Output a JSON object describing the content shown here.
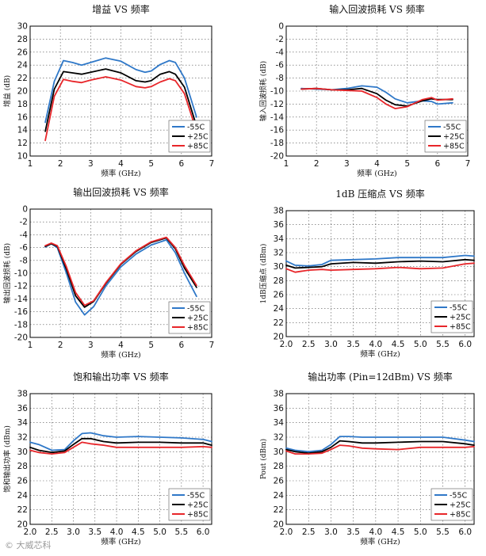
{
  "chart_data": [
    {
      "type": "line",
      "title": "增益 VS 频率",
      "xlabel": "频率 (GHz)",
      "ylabel": "增益 (dB)",
      "xlim": [
        1,
        7
      ],
      "ylim": [
        10,
        30
      ],
      "xticks": [
        1,
        2,
        3,
        4,
        5,
        6,
        7
      ],
      "yticks": [
        10,
        12,
        14,
        16,
        18,
        20,
        22,
        24,
        26,
        28,
        30
      ],
      "grid": true,
      "legend": "bottom-right",
      "series": [
        {
          "name": "-55C",
          "color": "#2f78c8",
          "x": [
            1.5,
            1.8,
            2.1,
            2.4,
            2.7,
            3.0,
            3.5,
            4.0,
            4.5,
            4.8,
            5.0,
            5.3,
            5.6,
            5.8,
            6.1,
            6.5
          ],
          "y": [
            15.2,
            21.5,
            24.7,
            24.4,
            24.0,
            24.4,
            25.1,
            24.6,
            23.3,
            22.9,
            23.1,
            24.1,
            24.7,
            24.4,
            22.0,
            16.0
          ]
        },
        {
          "name": "+25C",
          "color": "#000000",
          "x": [
            1.5,
            1.8,
            2.1,
            2.4,
            2.7,
            3.0,
            3.5,
            4.0,
            4.5,
            4.8,
            5.0,
            5.3,
            5.6,
            5.8,
            6.1,
            6.5
          ],
          "y": [
            13.8,
            20.3,
            23.0,
            22.8,
            22.6,
            22.9,
            23.4,
            22.8,
            21.6,
            21.4,
            21.6,
            22.6,
            23.0,
            22.6,
            20.6,
            14.6
          ]
        },
        {
          "name": "+85C",
          "color": "#e8262a",
          "x": [
            1.5,
            1.8,
            2.1,
            2.4,
            2.7,
            3.0,
            3.5,
            4.0,
            4.5,
            4.8,
            5.0,
            5.3,
            5.6,
            5.8,
            6.1,
            6.5
          ],
          "y": [
            12.4,
            19.2,
            21.8,
            21.5,
            21.3,
            21.7,
            22.2,
            21.7,
            20.7,
            20.5,
            20.7,
            21.4,
            21.9,
            21.6,
            19.6,
            13.8
          ]
        }
      ]
    },
    {
      "type": "line",
      "title": "输入回波损耗 VS 频率",
      "xlabel": "频率 (GHz)",
      "ylabel": "输入回波损耗 (dB)",
      "xlim": [
        1,
        7
      ],
      "ylim": [
        -20,
        0
      ],
      "xticks": [
        1,
        2,
        3,
        4,
        5,
        6,
        7
      ],
      "yticks": [
        0,
        -2,
        -4,
        -6,
        -8,
        -10,
        -12,
        -14,
        -16,
        -18,
        -20
      ],
      "grid": true,
      "legend": "bottom-right",
      "series": [
        {
          "name": "-55C",
          "color": "#2f78c8",
          "x": [
            1.5,
            2.0,
            2.5,
            3.0,
            3.5,
            4.0,
            4.3,
            4.6,
            5.0,
            5.5,
            5.8,
            6.0,
            6.5
          ],
          "y": [
            -9.6,
            -9.7,
            -9.8,
            -9.6,
            -9.2,
            -9.4,
            -10.2,
            -11.2,
            -11.8,
            -11.5,
            -11.6,
            -12.0,
            -11.8
          ]
        },
        {
          "name": "+25C",
          "color": "#000000",
          "x": [
            1.5,
            2.0,
            2.5,
            3.0,
            3.5,
            4.0,
            4.3,
            4.6,
            5.0,
            5.5,
            5.8,
            6.0,
            6.5
          ],
          "y": [
            -9.7,
            -9.6,
            -9.8,
            -9.8,
            -9.6,
            -10.4,
            -11.4,
            -12.1,
            -12.3,
            -11.5,
            -11.2,
            -11.3,
            -11.3
          ]
        },
        {
          "name": "+85C",
          "color": "#e8262a",
          "x": [
            1.5,
            2.0,
            2.5,
            3.0,
            3.5,
            4.0,
            4.3,
            4.6,
            5.0,
            5.5,
            5.8,
            6.0,
            6.5
          ],
          "y": [
            -9.7,
            -9.6,
            -9.8,
            -9.9,
            -10.0,
            -11.0,
            -12.0,
            -12.7,
            -12.4,
            -11.3,
            -11.0,
            -11.4,
            -11.2
          ]
        }
      ]
    },
    {
      "type": "line",
      "title": "输出回波损耗 VS 频率",
      "xlabel": "频率 (GHz)",
      "ylabel": "输出回波损耗 (dB)",
      "xlim": [
        1,
        7
      ],
      "ylim": [
        -20,
        0
      ],
      "xticks": [
        1,
        2,
        3,
        4,
        5,
        6,
        7
      ],
      "yticks": [
        0,
        -2,
        -4,
        -6,
        -8,
        -10,
        -12,
        -14,
        -16,
        -18,
        -20
      ],
      "grid": true,
      "legend": "bottom-right",
      "series": [
        {
          "name": "-55C",
          "color": "#2f78c8",
          "x": [
            1.5,
            1.7,
            1.9,
            2.2,
            2.5,
            2.8,
            3.1,
            3.5,
            4.0,
            4.5,
            5.0,
            5.5,
            5.8,
            6.1,
            6.5
          ],
          "y": [
            -5.9,
            -5.4,
            -6.0,
            -10.0,
            -14.5,
            -16.5,
            -15.2,
            -12.0,
            -9.0,
            -7.0,
            -5.6,
            -4.8,
            -6.8,
            -10.0,
            -13.6
          ]
        },
        {
          "name": "+25C",
          "color": "#000000",
          "x": [
            1.5,
            1.7,
            1.9,
            2.2,
            2.5,
            2.8,
            3.1,
            3.5,
            4.0,
            4.5,
            5.0,
            5.5,
            5.8,
            6.1,
            6.5
          ],
          "y": [
            -5.8,
            -5.4,
            -5.8,
            -9.4,
            -13.5,
            -15.3,
            -14.4,
            -11.6,
            -8.6,
            -6.6,
            -5.2,
            -4.5,
            -6.2,
            -9.2,
            -12.2
          ]
        },
        {
          "name": "+85C",
          "color": "#e8262a",
          "x": [
            1.5,
            1.7,
            1.9,
            2.2,
            2.5,
            2.8,
            3.1,
            3.5,
            4.0,
            4.5,
            5.0,
            5.5,
            5.8,
            6.1,
            6.5
          ],
          "y": [
            -5.7,
            -5.3,
            -5.7,
            -9.0,
            -13.0,
            -15.0,
            -14.3,
            -11.5,
            -8.5,
            -6.5,
            -5.1,
            -4.4,
            -6.0,
            -8.8,
            -11.9
          ]
        }
      ]
    },
    {
      "type": "line",
      "title": "1dB 压缩点 VS 频率",
      "xlabel": "频率 (GHz)",
      "ylabel": "1dB压缩点 (dBm)",
      "xlim": [
        2.0,
        6.2
      ],
      "ylim": [
        20,
        38
      ],
      "xticks": [
        2.0,
        2.5,
        3.0,
        3.5,
        4.0,
        4.5,
        5.0,
        5.5,
        6.0
      ],
      "yticks": [
        20,
        22,
        24,
        26,
        28,
        30,
        32,
        34,
        36,
        38
      ],
      "grid": true,
      "legend": "bottom-right",
      "series": [
        {
          "name": "-55C",
          "color": "#2f78c8",
          "x": [
            2.0,
            2.2,
            2.5,
            2.8,
            3.0,
            3.5,
            4.0,
            4.5,
            5.0,
            5.5,
            6.0,
            6.2
          ],
          "y": [
            30.8,
            30.2,
            30.1,
            30.3,
            30.9,
            31.0,
            31.1,
            31.3,
            31.3,
            31.3,
            31.6,
            31.5
          ]
        },
        {
          "name": "+25C",
          "color": "#000000",
          "x": [
            2.0,
            2.2,
            2.5,
            2.8,
            3.0,
            3.5,
            4.0,
            4.5,
            5.0,
            5.5,
            6.0,
            6.2
          ],
          "y": [
            30.2,
            29.8,
            29.9,
            30.0,
            30.4,
            30.6,
            30.5,
            30.7,
            30.8,
            30.7,
            31.0,
            30.9
          ]
        },
        {
          "name": "+85C",
          "color": "#e8262a",
          "x": [
            2.0,
            2.2,
            2.5,
            2.8,
            3.0,
            3.5,
            4.0,
            4.5,
            5.0,
            5.5,
            6.0,
            6.2
          ],
          "y": [
            29.7,
            29.2,
            29.5,
            29.6,
            29.5,
            29.6,
            29.7,
            29.9,
            29.7,
            29.8,
            30.4,
            30.5
          ]
        }
      ]
    },
    {
      "type": "line",
      "title": "饱和输出功率 VS 频率",
      "xlabel": "频率 (GHz)",
      "ylabel": "饱和输出功率 (dBm)",
      "xlim": [
        2.0,
        6.2
      ],
      "ylim": [
        20,
        38
      ],
      "xticks": [
        2.0,
        2.5,
        3.0,
        3.5,
        4.0,
        4.5,
        5.0,
        5.5,
        6.0
      ],
      "yticks": [
        20,
        22,
        24,
        26,
        28,
        30,
        32,
        34,
        36,
        38
      ],
      "grid": true,
      "legend": "bottom-right",
      "series": [
        {
          "name": "-55C",
          "color": "#2f78c8",
          "x": [
            2.0,
            2.2,
            2.5,
            2.8,
            3.0,
            3.2,
            3.4,
            3.7,
            4.0,
            4.5,
            5.0,
            5.5,
            6.0,
            6.2
          ],
          "y": [
            31.3,
            31.0,
            30.2,
            30.3,
            31.5,
            32.5,
            32.6,
            32.2,
            32.0,
            32.1,
            32.0,
            31.9,
            31.7,
            31.4
          ]
        },
        {
          "name": "+25C",
          "color": "#000000",
          "x": [
            2.0,
            2.2,
            2.5,
            2.8,
            3.0,
            3.2,
            3.4,
            3.7,
            4.0,
            4.5,
            5.0,
            5.5,
            6.0,
            6.2
          ],
          "y": [
            30.6,
            30.2,
            29.9,
            30.1,
            31.0,
            31.8,
            31.8,
            31.4,
            31.2,
            31.3,
            31.3,
            31.2,
            31.2,
            30.9
          ]
        },
        {
          "name": "+85C",
          "color": "#e8262a",
          "x": [
            2.0,
            2.2,
            2.5,
            2.8,
            3.0,
            3.2,
            3.4,
            3.7,
            4.0,
            4.5,
            5.0,
            5.5,
            6.0,
            6.2
          ],
          "y": [
            30.2,
            29.9,
            29.7,
            29.9,
            30.6,
            31.3,
            31.1,
            30.9,
            30.6,
            30.6,
            30.6,
            30.6,
            30.7,
            30.6
          ]
        }
      ]
    },
    {
      "type": "line",
      "title": "输出功率 (Pin=12dBm) VS 频率",
      "xlabel": "频率 (GHz)",
      "ylabel": "Pout (dBm)",
      "xlim": [
        2.0,
        6.2
      ],
      "ylim": [
        20,
        38
      ],
      "xticks": [
        2.0,
        2.5,
        3.0,
        3.5,
        4.0,
        4.5,
        5.0,
        5.5,
        6.0
      ],
      "yticks": [
        20,
        22,
        24,
        26,
        28,
        30,
        32,
        34,
        36,
        38
      ],
      "grid": true,
      "legend": "bottom-right",
      "series": [
        {
          "name": "-55C",
          "color": "#2f78c8",
          "x": [
            2.0,
            2.2,
            2.5,
            2.8,
            3.0,
            3.2,
            3.4,
            3.7,
            4.0,
            4.5,
            5.0,
            5.5,
            6.0,
            6.2
          ],
          "y": [
            30.5,
            30.2,
            30.0,
            30.2,
            31.0,
            32.1,
            32.1,
            32.0,
            32.0,
            32.0,
            32.0,
            32.0,
            31.6,
            31.4
          ]
        },
        {
          "name": "+25C",
          "color": "#000000",
          "x": [
            2.0,
            2.2,
            2.5,
            2.8,
            3.0,
            3.2,
            3.4,
            3.7,
            4.0,
            4.5,
            5.0,
            5.5,
            6.0,
            6.2
          ],
          "y": [
            30.3,
            30.0,
            29.8,
            30.0,
            30.6,
            31.5,
            31.4,
            31.2,
            31.2,
            31.3,
            31.4,
            31.4,
            31.1,
            30.9
          ]
        },
        {
          "name": "+85C",
          "color": "#e8262a",
          "x": [
            2.0,
            2.2,
            2.5,
            2.8,
            3.0,
            3.2,
            3.4,
            3.7,
            4.0,
            4.5,
            5.0,
            5.5,
            6.0,
            6.2
          ],
          "y": [
            30.1,
            29.7,
            29.7,
            29.8,
            30.3,
            30.9,
            30.8,
            30.5,
            30.4,
            30.3,
            30.6,
            30.6,
            30.6,
            30.7
          ]
        }
      ]
    }
  ],
  "watermark": "大威芯科"
}
